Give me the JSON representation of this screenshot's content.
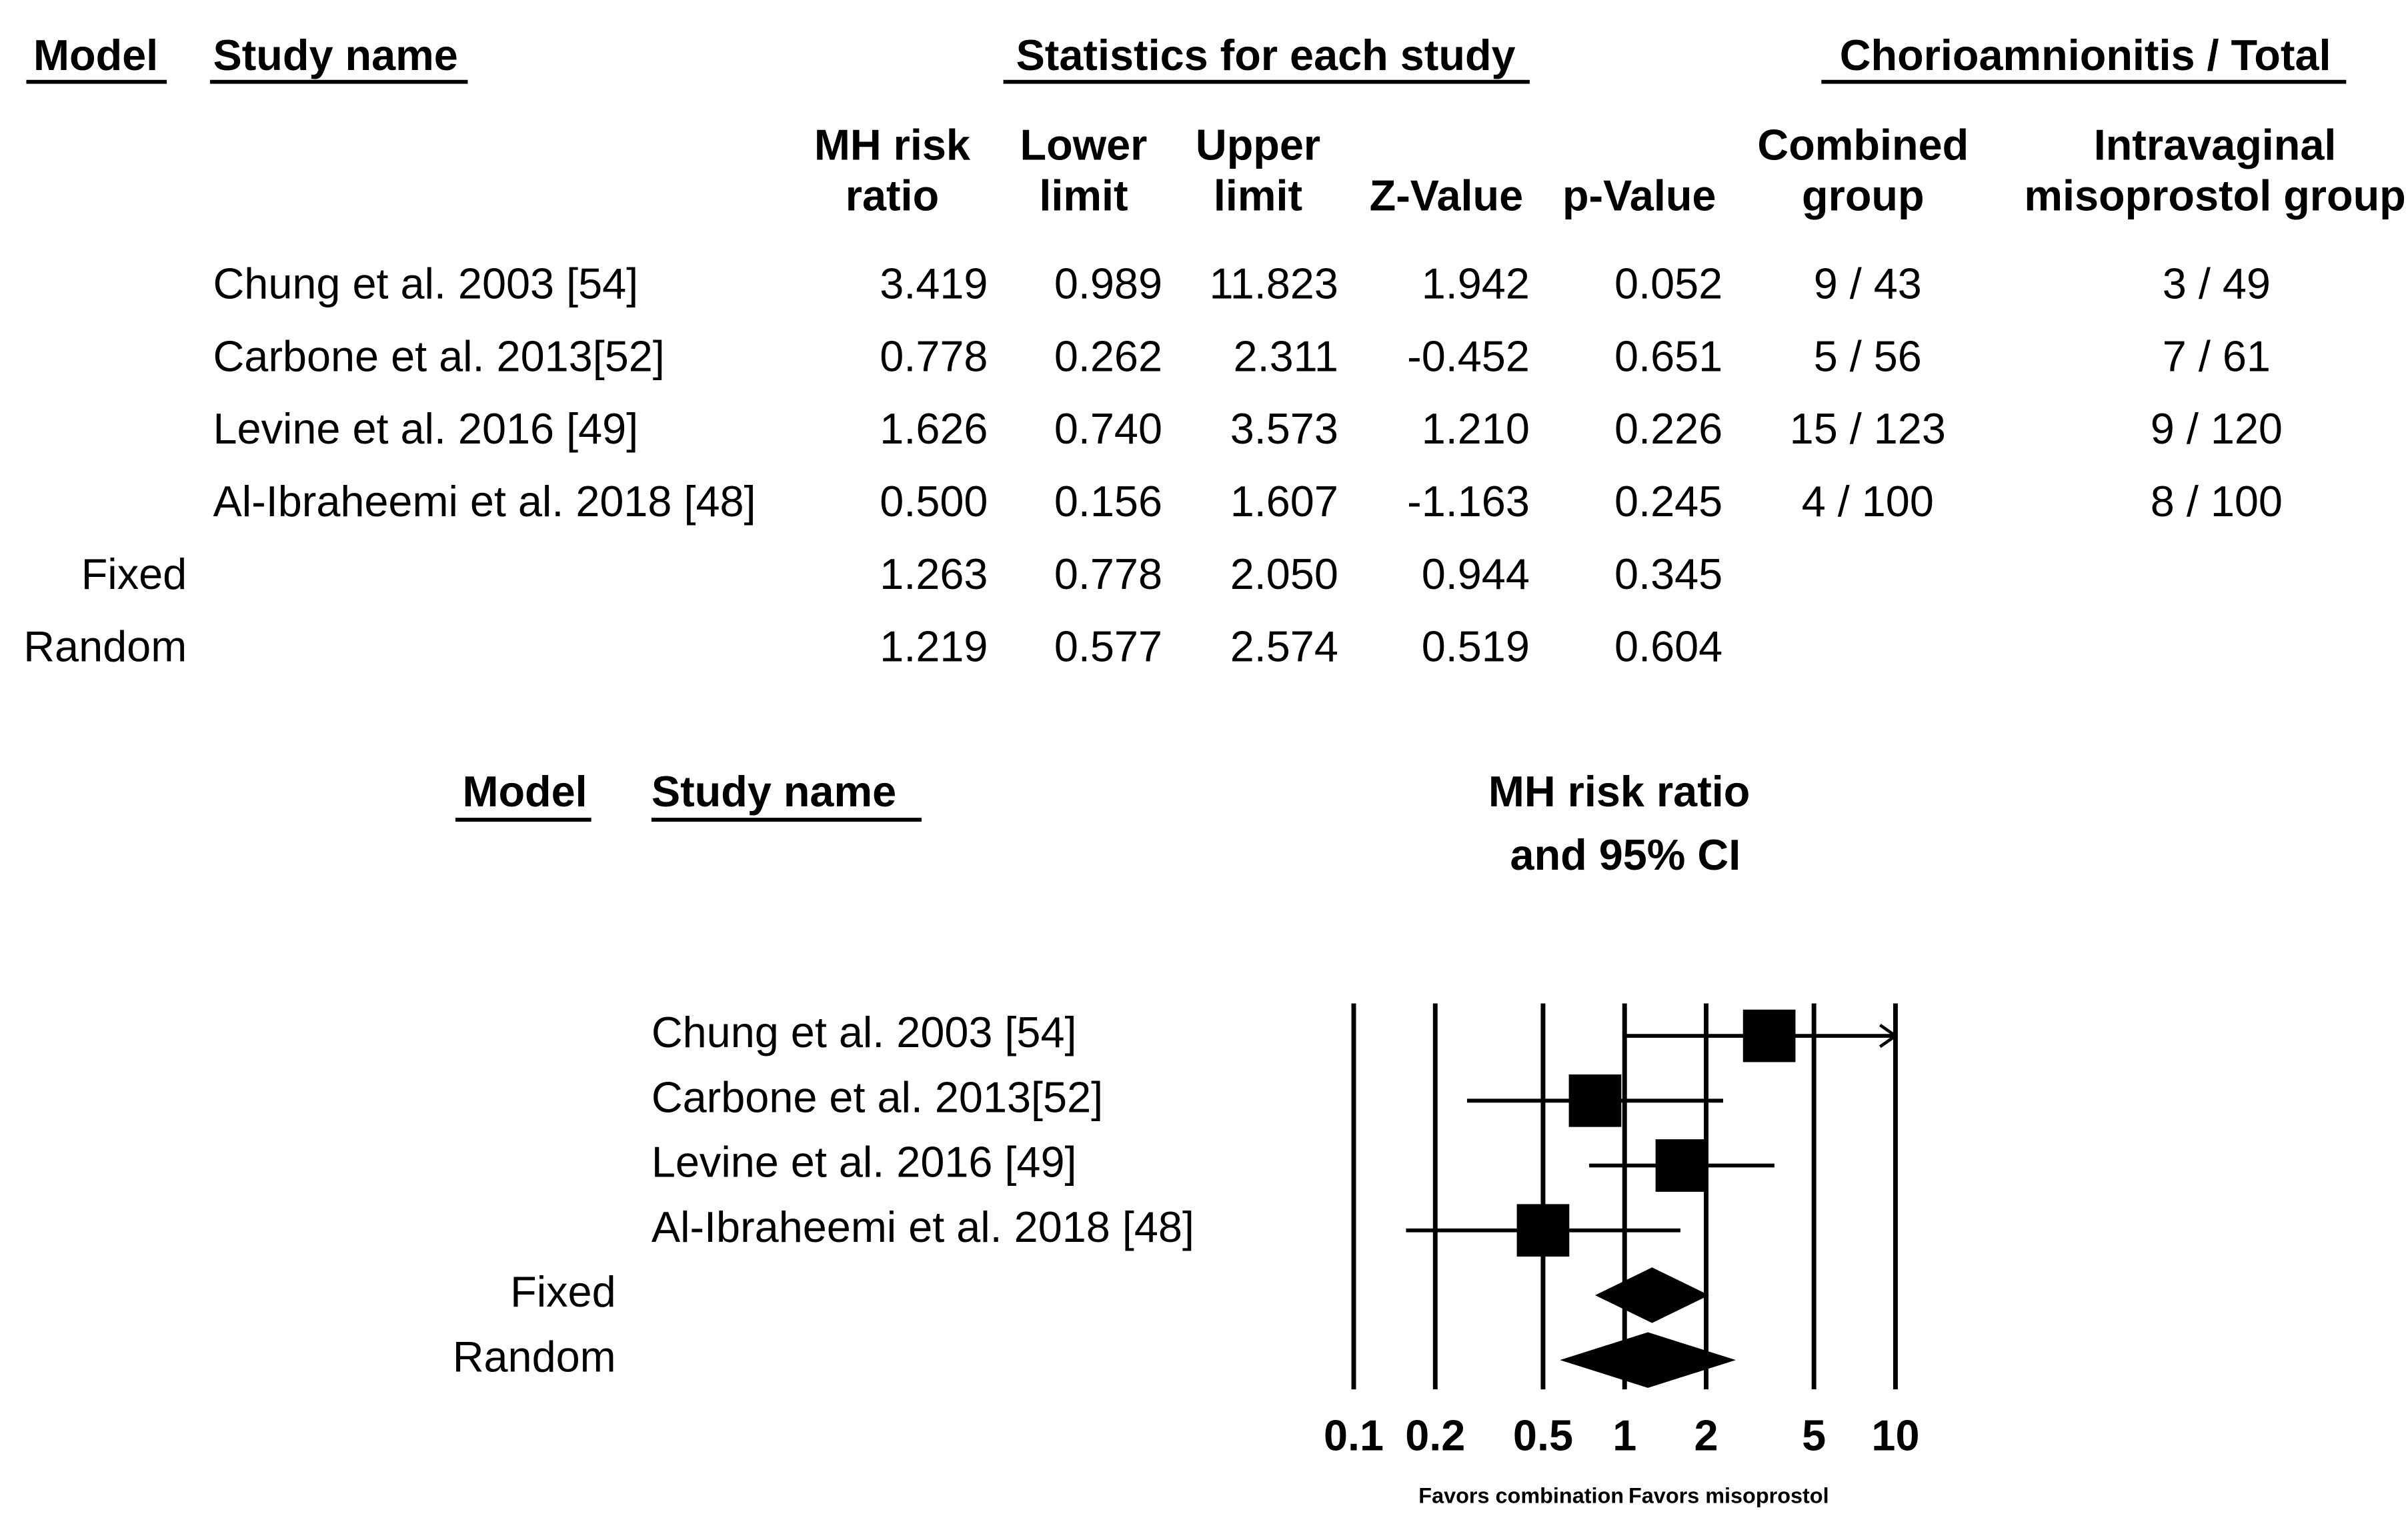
{
  "table": {
    "headers": {
      "model": "Model",
      "study_name": "Study name",
      "statistics": "Statistics for each study",
      "events": "Chorioamnionitis / Total"
    },
    "columns": [
      [
        "MH risk",
        "ratio"
      ],
      [
        "Lower",
        "limit"
      ],
      [
        "Upper",
        "limit"
      ],
      [
        "Z-Value"
      ],
      [
        "p-Value"
      ],
      [
        "Combined",
        "group"
      ],
      [
        "Intravaginal",
        "misoprostol group"
      ]
    ],
    "rows": [
      {
        "study": "Chung et al. 2003 [54]",
        "stats": [
          "3.419",
          "0.989",
          "11.823",
          "1.942",
          "0.052"
        ],
        "events": [
          "9 / 43",
          "3 / 49"
        ]
      },
      {
        "study": "Carbone et al. 2013[52]",
        "stats": [
          "0.778",
          "0.262",
          "2.311",
          "-0.452",
          "0.651"
        ],
        "events": [
          "5 / 56",
          "7 / 61"
        ]
      },
      {
        "study": "Levine et al. 2016 [49]",
        "stats": [
          "1.626",
          "0.740",
          "3.573",
          "1.210",
          "0.226"
        ],
        "events": [
          "15 / 123",
          "9 / 120"
        ]
      },
      {
        "study": "Al-Ibraheemi et al. 2018 [48]",
        "stats": [
          "0.500",
          "0.156",
          "1.607",
          "-1.163",
          "0.245"
        ],
        "events": [
          "4 / 100",
          "8 / 100"
        ]
      },
      {
        "model": "Fixed",
        "stats": [
          "1.263",
          "0.778",
          "2.050",
          "0.944",
          "0.345"
        ]
      },
      {
        "model": "Random",
        "stats": [
          "1.219",
          "0.577",
          "2.574",
          "0.519",
          "0.604"
        ]
      }
    ]
  },
  "chart_data": {
    "type": "forest",
    "title": [
      "MH risk ratio",
      "and 95% CI"
    ],
    "values": [
      3.419,
      0.778,
      1.626,
      0.5,
      1.263,
      1.219
    ],
    "lower": [
      0.989,
      0.262,
      0.74,
      0.156,
      0.778,
      0.577
    ],
    "upper": [
      11.823,
      2.311,
      3.573,
      1.607,
      2.05,
      2.574
    ],
    "log_scale": true,
    "xlim": [
      0.1,
      10
    ],
    "xticks": [
      0.1,
      0.2,
      0.5,
      1,
      2,
      5,
      10
    ],
    "grid": true,
    "color": "#000000",
    "xlabel_left": "Favors combination",
    "xlabel_right": "Favors misoprostol"
  }
}
